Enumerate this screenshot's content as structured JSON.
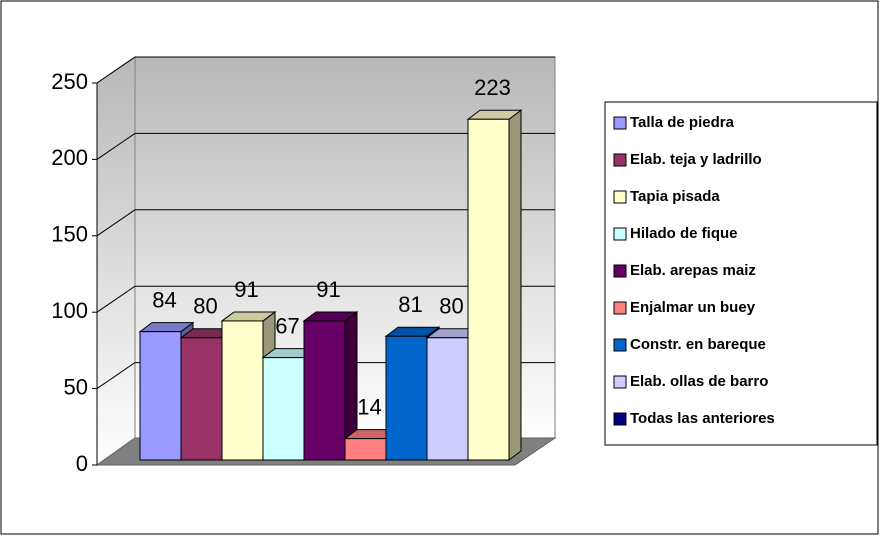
{
  "chart_data": {
    "type": "bar3d",
    "series": [
      {
        "name": "Talla de piedra",
        "color": "#9999ff",
        "values": [
          84
        ]
      },
      {
        "name": "Elab. teja y ladrillo",
        "color": "#993366",
        "values": [
          80
        ]
      },
      {
        "name": "Tapia pisada",
        "color": "#ffffcc",
        "values": [
          91
        ]
      },
      {
        "name": "Hilado de fique",
        "color": "#ccffff",
        "values": [
          67
        ]
      },
      {
        "name": "Elab. arepas maiz",
        "color": "#660066",
        "values": [
          91
        ]
      },
      {
        "name": "Enjalmar un buey",
        "color": "#ff8080",
        "values": [
          14
        ]
      },
      {
        "name": "Constr. en bareque",
        "color": "#0066cc",
        "values": [
          81
        ]
      },
      {
        "name": "Elab. ollas de barro",
        "color": "#ccccff",
        "values": [
          80
        ]
      },
      {
        "name": "Todas las anteriores",
        "color": "#000080",
        "bar_color": "#ffffcc",
        "values": [
          223
        ]
      }
    ],
    "ylim": [
      0,
      250
    ],
    "yticks": [
      0,
      50,
      100,
      150,
      200,
      250
    ],
    "grid": true,
    "legend": "right"
  }
}
